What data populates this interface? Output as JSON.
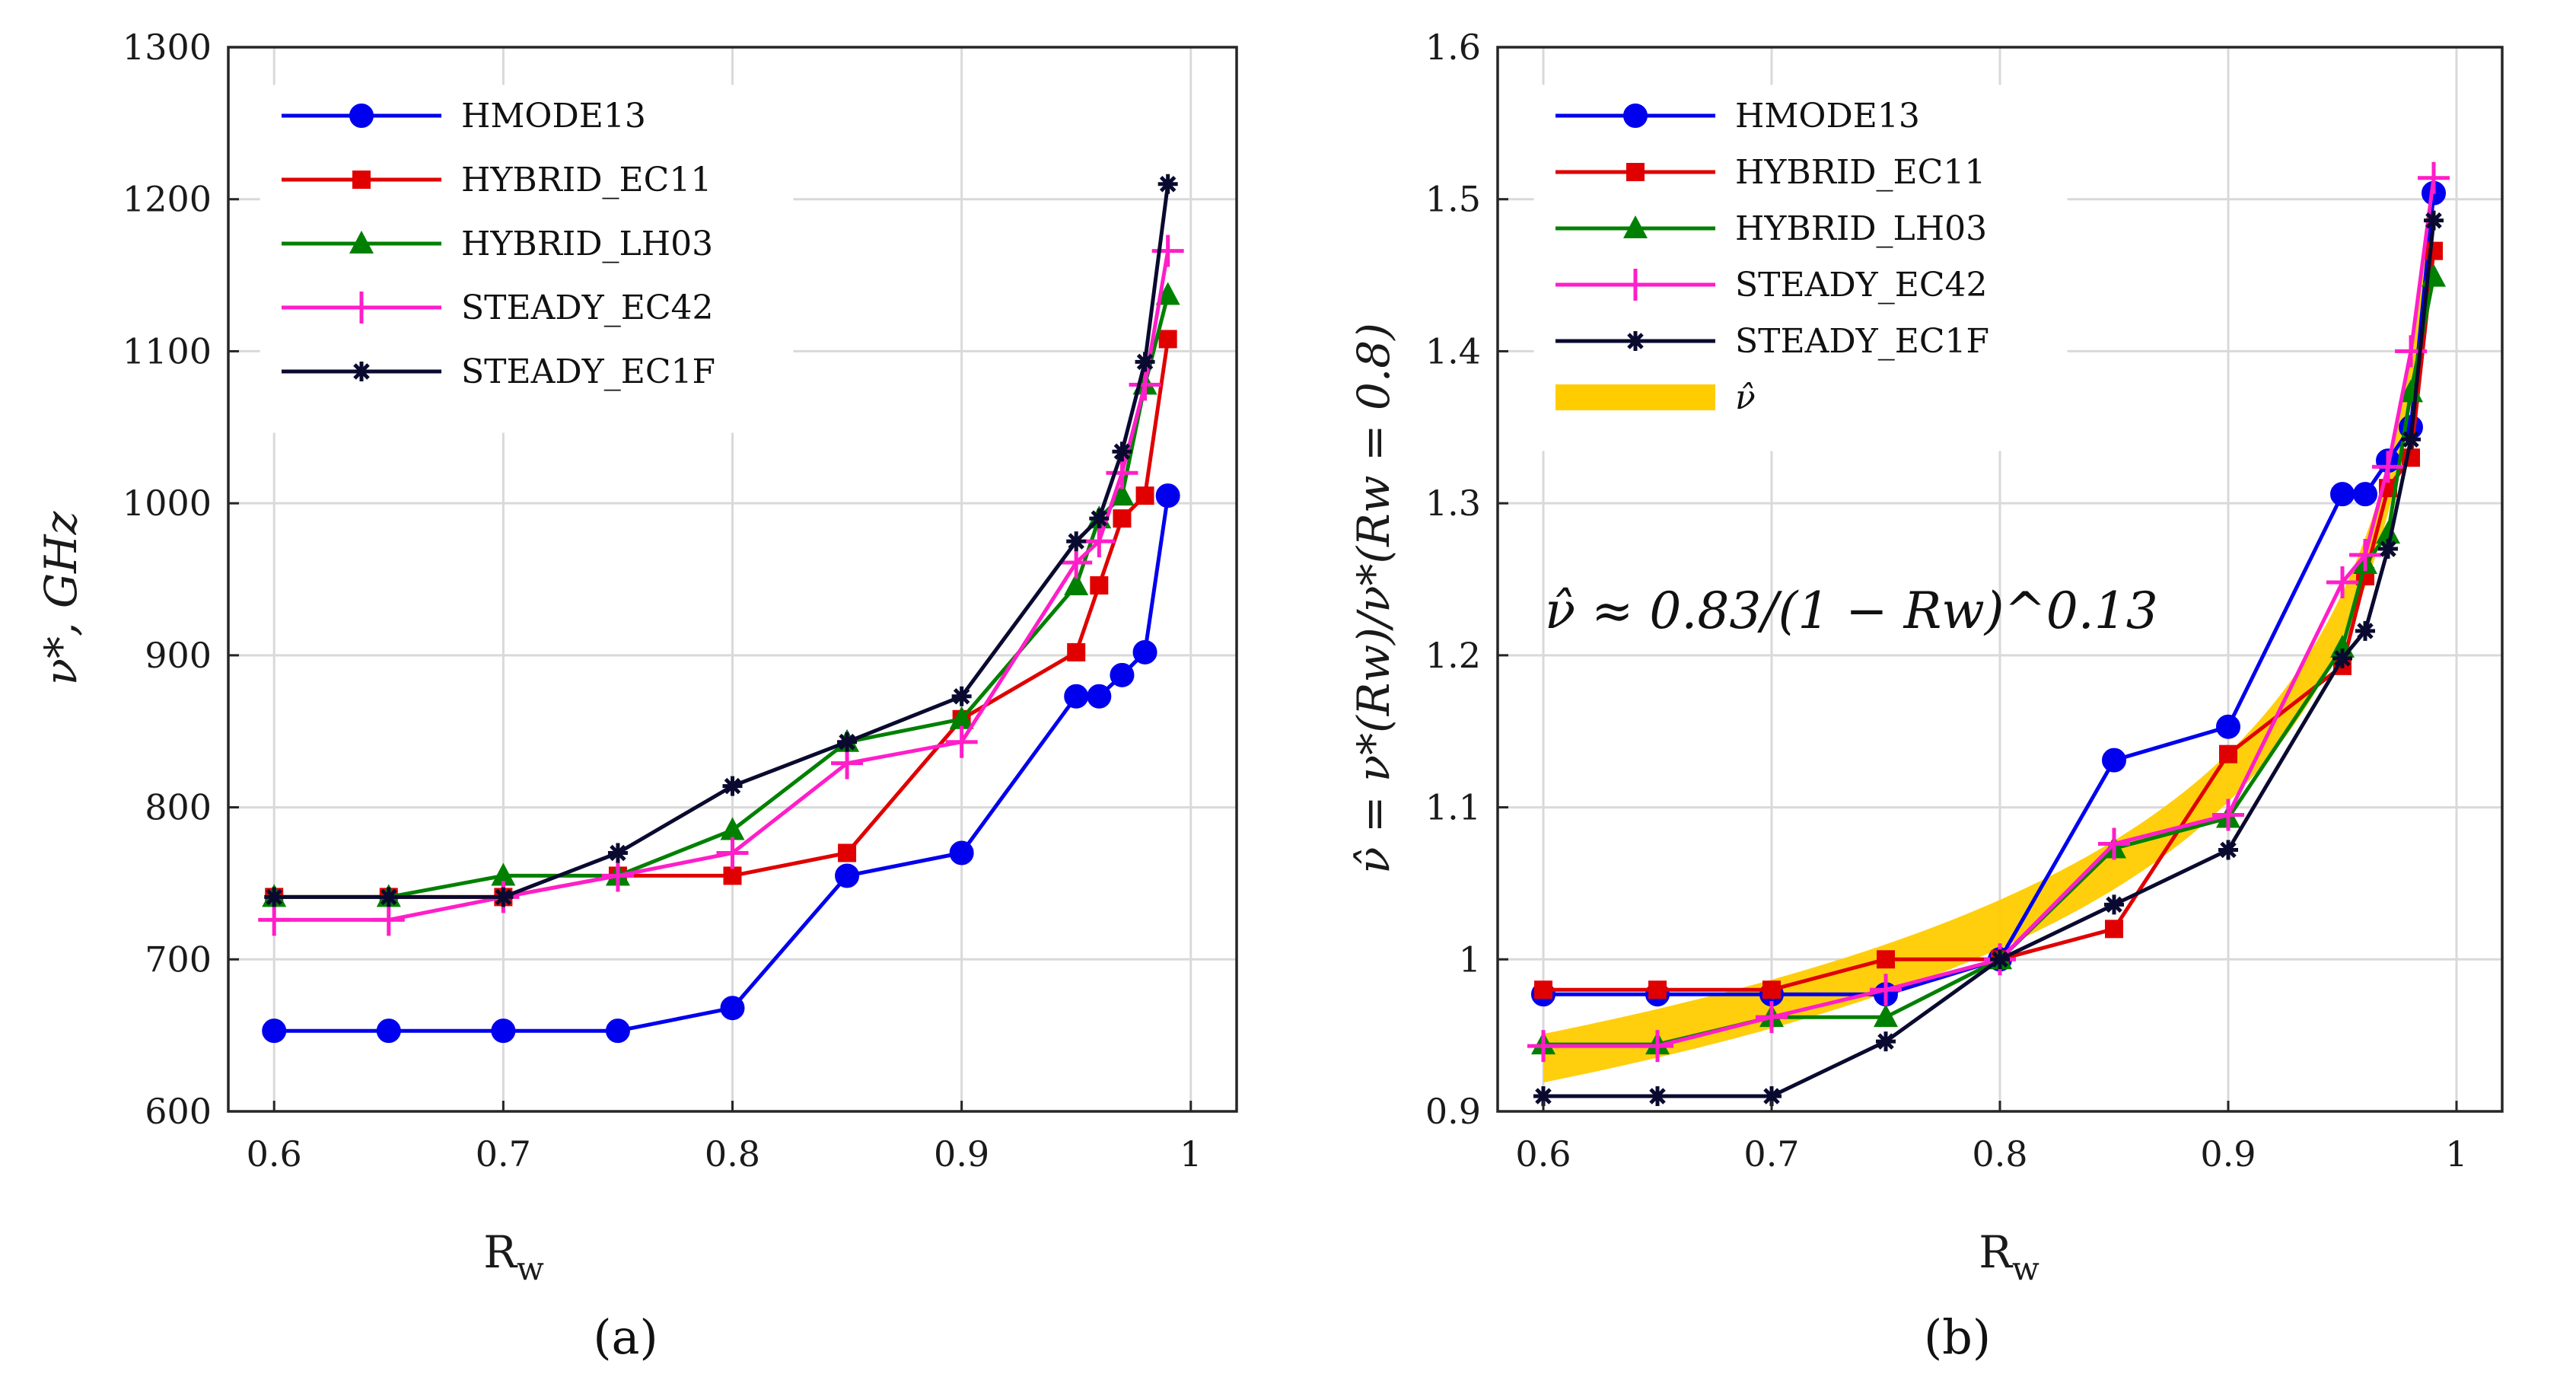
{
  "chart_data": [
    {
      "type": "line",
      "panel_label": "(a)",
      "xlabel": "R",
      "xlabel_sub": "w",
      "ylabel": "ν*, GHz",
      "xlim": [
        0.58,
        1.02
      ],
      "ylim": [
        600,
        1300
      ],
      "xticks": [
        "0.6",
        "0.7",
        "0.8",
        "0.9",
        "1"
      ],
      "yticks": [
        "600",
        "700",
        "800",
        "900",
        "1000",
        "1100",
        "1200",
        "1300"
      ],
      "grid": true,
      "legend_position": "top-left",
      "series": [
        {
          "name": "HMODE13",
          "color": "#0000ee",
          "marker": "circle",
          "x": [
            0.6,
            0.65,
            0.7,
            0.75,
            0.8,
            0.85,
            0.9,
            0.95,
            0.96,
            0.97,
            0.98,
            0.99
          ],
          "y": [
            653,
            653,
            653,
            653,
            668,
            755,
            770,
            873,
            873,
            887,
            902,
            1005
          ]
        },
        {
          "name": "HYBRID_EC11",
          "color": "#e00000",
          "marker": "square",
          "x": [
            0.6,
            0.65,
            0.7,
            0.75,
            0.8,
            0.85,
            0.9,
            0.95,
            0.96,
            0.97,
            0.98,
            0.99
          ],
          "y": [
            741,
            741,
            741,
            755,
            755,
            770,
            858,
            902,
            946,
            990,
            1005,
            1108
          ]
        },
        {
          "name": "HYBRID_LH03",
          "color": "#008000",
          "marker": "triangle",
          "x": [
            0.6,
            0.65,
            0.7,
            0.75,
            0.8,
            0.85,
            0.9,
            0.95,
            0.96,
            0.97,
            0.98,
            0.99
          ],
          "y": [
            741,
            741,
            755,
            755,
            785,
            843,
            858,
            946,
            990,
            1005,
            1078,
            1137
          ]
        },
        {
          "name": "STEADY_EC42",
          "color": "#ff1ec8",
          "marker": "plus",
          "x": [
            0.6,
            0.65,
            0.7,
            0.75,
            0.8,
            0.85,
            0.9,
            0.95,
            0.96,
            0.97,
            0.98,
            0.99
          ],
          "y": [
            726,
            726,
            741,
            755,
            770,
            829,
            843,
            961,
            975,
            1020,
            1078,
            1166
          ]
        },
        {
          "name": "STEADY_EC1F",
          "color": "#0a0a30",
          "marker": "asterisk",
          "x": [
            0.6,
            0.65,
            0.7,
            0.75,
            0.8,
            0.85,
            0.9,
            0.95,
            0.96,
            0.97,
            0.98,
            0.99
          ],
          "y": [
            741,
            741,
            741,
            770,
            814,
            843,
            873,
            975,
            990,
            1034,
            1093,
            1210
          ]
        }
      ]
    },
    {
      "type": "line",
      "panel_label": "(b)",
      "xlabel": "R",
      "xlabel_sub": "w",
      "ylabel": "ν̂ = ν*(Rw)/ν*(Rw = 0.8)",
      "xlim": [
        0.58,
        1.02
      ],
      "ylim": [
        0.9,
        1.6
      ],
      "xticks": [
        "0.6",
        "0.7",
        "0.8",
        "0.9",
        "1"
      ],
      "yticks": [
        "0.9",
        "1",
        "1.1",
        "1.2",
        "1.3",
        "1.4",
        "1.5",
        "1.6"
      ],
      "grid": true,
      "legend_position": "top-left",
      "annotation": "ν̂ ≈ 0.83/(1 − Rw)^0.13",
      "band": {
        "name": "ν̂",
        "color": "#ffcc00",
        "formula_coefficient": 0.83,
        "formula_exponent": 0.13,
        "x_from": 0.6,
        "x_to": 0.99
      },
      "series": [
        {
          "name": "HMODE13",
          "color": "#0000ee",
          "marker": "circle",
          "x": [
            0.6,
            0.65,
            0.7,
            0.75,
            0.8,
            0.85,
            0.9,
            0.95,
            0.96,
            0.97,
            0.98,
            0.99
          ],
          "y": [
            0.977,
            0.977,
            0.977,
            0.977,
            1.0,
            1.131,
            1.153,
            1.306,
            1.306,
            1.328,
            1.35,
            1.504
          ]
        },
        {
          "name": "HYBRID_EC11",
          "color": "#e00000",
          "marker": "square",
          "x": [
            0.6,
            0.65,
            0.7,
            0.75,
            0.8,
            0.85,
            0.9,
            0.95,
            0.96,
            0.97,
            0.98,
            0.99
          ],
          "y": [
            0.98,
            0.98,
            0.98,
            1.0,
            1.0,
            1.02,
            1.135,
            1.193,
            1.252,
            1.31,
            1.33,
            1.466
          ]
        },
        {
          "name": "HYBRID_LH03",
          "color": "#008000",
          "marker": "triangle",
          "x": [
            0.6,
            0.65,
            0.7,
            0.75,
            0.8,
            0.85,
            0.9,
            0.95,
            0.96,
            0.97,
            0.98,
            0.99
          ],
          "y": [
            0.944,
            0.944,
            0.962,
            0.962,
            1.0,
            1.073,
            1.093,
            1.205,
            1.26,
            1.28,
            1.373,
            1.449
          ]
        },
        {
          "name": "STEADY_EC42",
          "color": "#ff1ec8",
          "marker": "plus",
          "x": [
            0.6,
            0.65,
            0.7,
            0.75,
            0.8,
            0.85,
            0.9,
            0.95,
            0.96,
            0.97,
            0.98,
            0.99
          ],
          "y": [
            0.943,
            0.943,
            0.962,
            0.98,
            1.0,
            1.076,
            1.095,
            1.248,
            1.266,
            1.324,
            1.4,
            1.514
          ]
        },
        {
          "name": "STEADY_EC1F",
          "color": "#0a0a30",
          "marker": "asterisk",
          "x": [
            0.6,
            0.65,
            0.7,
            0.75,
            0.8,
            0.85,
            0.9,
            0.95,
            0.96,
            0.97,
            0.98,
            0.99
          ],
          "y": [
            0.91,
            0.91,
            0.91,
            0.946,
            1.0,
            1.036,
            1.072,
            1.198,
            1.216,
            1.27,
            1.342,
            1.486
          ]
        }
      ]
    }
  ]
}
